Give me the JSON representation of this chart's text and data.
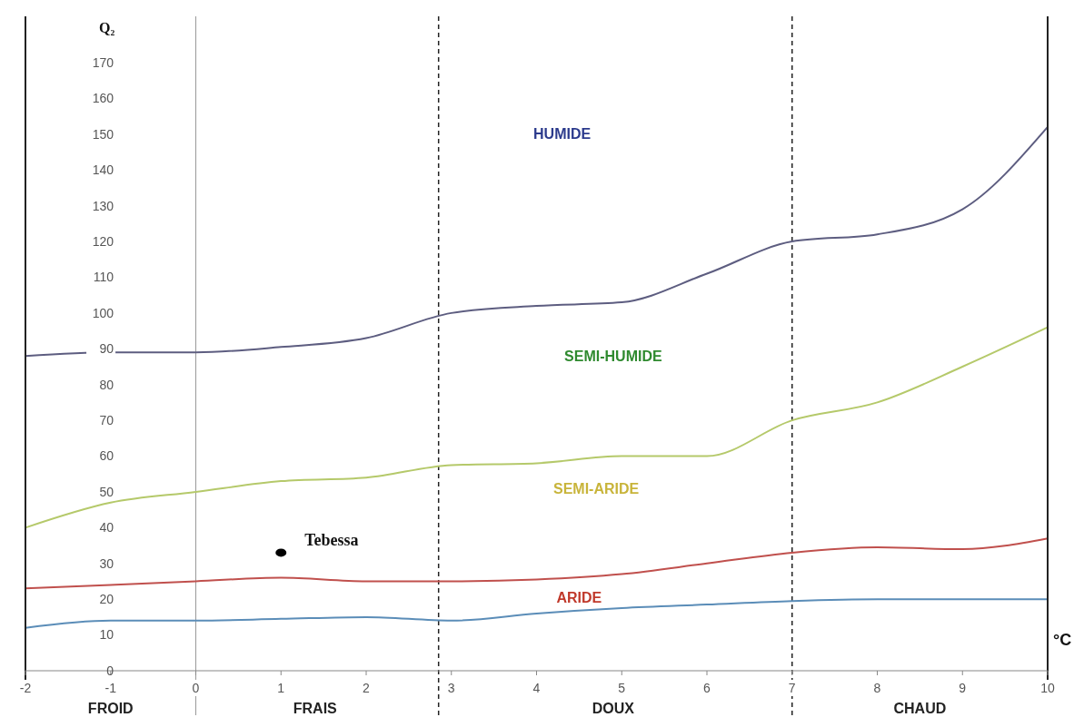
{
  "chart_data": {
    "type": "line",
    "ylabel": "Q₂",
    "xlabel": "°C",
    "x": [
      -2,
      -1,
      0,
      1,
      2,
      3,
      4,
      5,
      6,
      7,
      8,
      9,
      10
    ],
    "xlim": [
      -2,
      10
    ],
    "xticks": [
      -2,
      -1,
      0,
      1,
      2,
      3,
      4,
      5,
      6,
      7,
      8,
      9,
      10
    ],
    "ylim": [
      0,
      170
    ],
    "yticks": [
      0,
      10,
      20,
      30,
      40,
      50,
      60,
      70,
      80,
      90,
      100,
      110,
      120,
      130,
      140,
      150,
      160,
      170
    ],
    "grid": false,
    "line_style": "solid",
    "series": [
      {
        "color": "#5d5d80",
        "values": [
          88,
          89,
          89,
          90.5,
          93,
          100,
          102,
          103,
          111,
          120,
          122,
          129,
          152
        ]
      },
      {
        "color": "#b5c96a",
        "values": [
          40,
          47,
          50,
          53,
          54,
          57.5,
          58,
          60,
          60,
          70,
          75,
          85,
          96
        ]
      },
      {
        "color": "#c0504d",
        "values": [
          23,
          24,
          25,
          26,
          25,
          25,
          25.5,
          27,
          30,
          33,
          34.5,
          34,
          37
        ]
      },
      {
        "color": "#5b8db8",
        "values": [
          12,
          14,
          14,
          14.5,
          15,
          14,
          16,
          17.5,
          18.5,
          19.5,
          20,
          20,
          20
        ]
      },
      {
        "type": "scatter",
        "name": "Tebessa",
        "color": "#000000",
        "x": [
          1
        ],
        "values": [
          33
        ]
      }
    ],
    "annotations": [
      "HUMIDE",
      "SEMI-HUMIDE",
      "SEMI-ARIDE",
      "ARIDE",
      "FROID",
      "FRAIS",
      "DOUX",
      "CHAUD"
    ],
    "ref_lines": [
      {
        "axis": "x",
        "value": 0,
        "line_style": "solid"
      },
      {
        "axis": "x",
        "value": 2.85,
        "line_style": "dashed"
      },
      {
        "axis": "x",
        "value": 7,
        "line_style": "dashed"
      }
    ]
  }
}
